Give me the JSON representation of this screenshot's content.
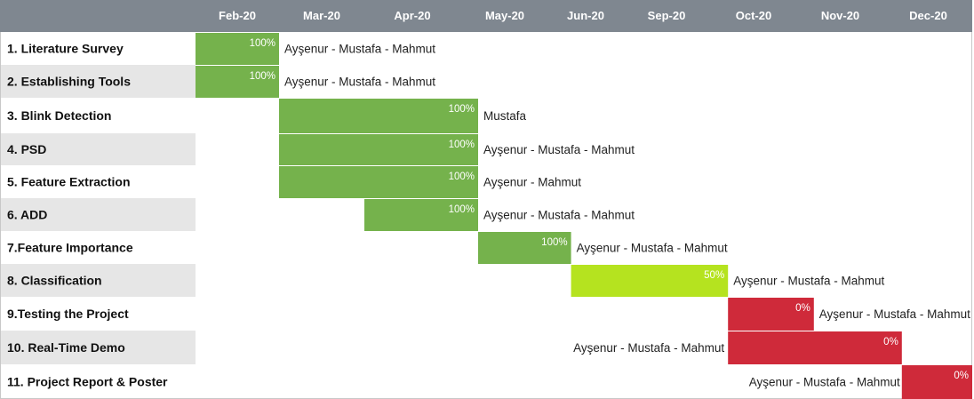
{
  "chart_data": {
    "type": "gantt",
    "months": [
      "Feb-20",
      "Mar-20",
      "Apr-20",
      "May-20",
      "Jun-20",
      "Sep-20",
      "Oct-20",
      "Nov-20",
      "Dec-20"
    ],
    "tasks": [
      {
        "name": "1. Literature Survey",
        "start": 0,
        "end": 1,
        "progress": "100%",
        "assignees": "Ayşenur - Mustafa - Mahmut",
        "status": "complete"
      },
      {
        "name": "2. Establishing Tools",
        "start": 0,
        "end": 1,
        "progress": "100%",
        "assignees": "Ayşenur - Mustafa - Mahmut",
        "status": "complete"
      },
      {
        "name": "3. Blink Detection",
        "start": 1,
        "end": 3.2,
        "progress": "100%",
        "assignees": "Mustafa",
        "status": "complete"
      },
      {
        "name": "4. PSD",
        "start": 1,
        "end": 3.2,
        "progress": "100%",
        "assignees": "Ayşenur - Mustafa - Mahmut",
        "status": "complete"
      },
      {
        "name": "5. Feature Extraction",
        "start": 1,
        "end": 3.2,
        "progress": "100%",
        "assignees": "Ayşenur - Mahmut",
        "status": "complete"
      },
      {
        "name": "6. ADD",
        "start": 2,
        "end": 3.2,
        "progress": "100%",
        "assignees": "Ayşenur - Mustafa - Mahmut",
        "status": "complete"
      },
      {
        "name": "7.Feature Importance",
        "start": 3.2,
        "end": 4.3,
        "progress": "100%",
        "assignees": "Ayşenur - Mustafa - Mahmut",
        "status": "complete"
      },
      {
        "name": "8. Classification",
        "start": 4.3,
        "end": 6.2,
        "progress": "50%",
        "assignees": "Ayşenur - Mustafa - Mahmut",
        "status": "in-progress"
      },
      {
        "name": "9.Testing the Project",
        "start": 6.2,
        "end": 7.2,
        "progress": "0%",
        "assignees": "Ayşenur - Mustafa - Mahmut",
        "status": "not-started"
      },
      {
        "name": "10. Real-Time Demo",
        "start": 6.2,
        "end": 8.2,
        "progress": "0%",
        "assignees": "Ayşenur - Mustafa - Mahmut",
        "status": "not-started"
      },
      {
        "name": "11. Project Report & Poster",
        "start": 8.2,
        "end": 9,
        "progress": "0%",
        "assignees": "Ayşenur - Mustafa - Mahmut",
        "status": "not-started"
      }
    ],
    "colors": {
      "header": "#7f8790",
      "complete": "#75b24c",
      "in-progress": "#b5e31f",
      "not-started": "#cf2a3a",
      "row_stripe": "#e6e6e6",
      "border": "#c8c8c8"
    },
    "grid": false,
    "legend": "none"
  }
}
